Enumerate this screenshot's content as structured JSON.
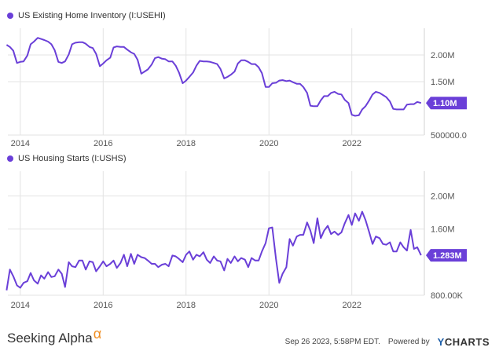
{
  "brand": {
    "name": "Seeking Alpha",
    "symbol": "α"
  },
  "footer": {
    "timestamp": "Sep 26 2023, 5:58PM EDT.",
    "powered_by": "Powered by",
    "provider_y": "Y",
    "provider_rest": "CHARTS"
  },
  "colors": {
    "line": "#6a3fd8",
    "grid": "#e3e3e3",
    "axis": "#555555",
    "brand_alpha": "#f08c1e",
    "ycharts_blue": "#1a5da8"
  },
  "chart_data": [
    {
      "type": "line",
      "title": "US Existing Home Inventory (I:USEHI)",
      "xlabel": "",
      "ylabel": "",
      "x_ticks": [
        "2014",
        "2016",
        "2018",
        "2020",
        "2022"
      ],
      "y_ticks": [
        {
          "value": 2000000,
          "label": "2.00M"
        },
        {
          "value": 1500000,
          "label": "1.50M"
        },
        {
          "value": 500000,
          "label": "500000.0"
        }
      ],
      "ylim": [
        500000,
        2500000
      ],
      "xlim": [
        2013.7,
        2023.75
      ],
      "last_value_label": "1.10M",
      "grid": true,
      "series": [
        {
          "x": [
            2013.67,
            2013.75,
            2013.83,
            2013.92,
            2014.0,
            2014.08,
            2014.17,
            2014.25,
            2014.33,
            2014.42,
            2014.5,
            2014.58,
            2014.67,
            2014.75,
            2014.83,
            2014.92,
            2015.0,
            2015.08,
            2015.17,
            2015.25,
            2015.33,
            2015.42,
            2015.5,
            2015.58,
            2015.67,
            2015.75,
            2015.83,
            2015.92,
            2016.0,
            2016.08,
            2016.17,
            2016.25,
            2016.33,
            2016.42,
            2016.5,
            2016.58,
            2016.67,
            2016.75,
            2016.83,
            2016.92,
            2017.0,
            2017.08,
            2017.17,
            2017.25,
            2017.33,
            2017.42,
            2017.5,
            2017.58,
            2017.67,
            2017.75,
            2017.83,
            2017.92,
            2018.0,
            2018.08,
            2018.17,
            2018.25,
            2018.33,
            2018.42,
            2018.5,
            2018.58,
            2018.67,
            2018.75,
            2018.83,
            2018.92,
            2019.0,
            2019.08,
            2019.17,
            2019.25,
            2019.33,
            2019.42,
            2019.5,
            2019.58,
            2019.67,
            2019.75,
            2019.83,
            2019.92,
            2020.0,
            2020.08,
            2020.17,
            2020.25,
            2020.33,
            2020.42,
            2020.5,
            2020.58,
            2020.67,
            2020.75,
            2020.83,
            2020.92,
            2021.0,
            2021.08,
            2021.17,
            2021.25,
            2021.33,
            2021.42,
            2021.5,
            2021.58,
            2021.67,
            2021.75,
            2021.83,
            2021.92,
            2022.0,
            2022.08,
            2022.17,
            2022.25,
            2022.33,
            2022.42,
            2022.5,
            2022.58,
            2022.67,
            2022.75,
            2022.83,
            2022.92,
            2023.0,
            2023.08,
            2023.17,
            2023.25,
            2023.33,
            2023.42,
            2023.5,
            2023.58,
            2023.67
          ],
          "values": [
            2190000,
            2150000,
            2080000,
            1850000,
            1870000,
            1880000,
            1990000,
            2200000,
            2250000,
            2320000,
            2300000,
            2280000,
            2250000,
            2200000,
            2090000,
            1870000,
            1850000,
            1880000,
            2010000,
            2200000,
            2230000,
            2240000,
            2240000,
            2210000,
            2150000,
            2130000,
            2020000,
            1790000,
            1840000,
            1900000,
            1950000,
            2140000,
            2160000,
            2150000,
            2150000,
            2100000,
            2050000,
            2020000,
            1910000,
            1650000,
            1690000,
            1730000,
            1820000,
            1940000,
            1960000,
            1930000,
            1920000,
            1880000,
            1880000,
            1800000,
            1670000,
            1470000,
            1520000,
            1590000,
            1670000,
            1800000,
            1890000,
            1880000,
            1880000,
            1870000,
            1850000,
            1830000,
            1740000,
            1560000,
            1590000,
            1630000,
            1690000,
            1840000,
            1900000,
            1900000,
            1870000,
            1830000,
            1830000,
            1770000,
            1660000,
            1400000,
            1400000,
            1470000,
            1480000,
            1520000,
            1530000,
            1510000,
            1520000,
            1490000,
            1460000,
            1460000,
            1400000,
            1290000,
            1050000,
            1040000,
            1040000,
            1150000,
            1230000,
            1230000,
            1290000,
            1310000,
            1270000,
            1260000,
            1160000,
            1100000,
            880000,
            860000,
            870000,
            980000,
            1040000,
            1150000,
            1260000,
            1310000,
            1290000,
            1250000,
            1210000,
            1130000,
            990000,
            980000,
            980000,
            980000,
            1070000,
            1080000,
            1080000,
            1120000,
            1100000
          ]
        }
      ]
    },
    {
      "type": "line",
      "title": "US Housing Starts (I:USHS)",
      "xlabel": "",
      "ylabel": "",
      "x_ticks": [
        "2014",
        "2016",
        "2018",
        "2020",
        "2022"
      ],
      "y_ticks": [
        {
          "value": 2000000,
          "label": "2.00M"
        },
        {
          "value": 1600000,
          "label": "1.60M"
        },
        {
          "value": 800000,
          "label": "800.00K"
        }
      ],
      "ylim": [
        800000,
        2300000
      ],
      "xlim": [
        2013.7,
        2023.75
      ],
      "last_value_label": "1.283M",
      "grid": true,
      "series": [
        {
          "x": [
            2013.67,
            2013.75,
            2013.83,
            2013.92,
            2014.0,
            2014.08,
            2014.17,
            2014.25,
            2014.33,
            2014.42,
            2014.5,
            2014.58,
            2014.67,
            2014.75,
            2014.83,
            2014.92,
            2015.0,
            2015.08,
            2015.17,
            2015.25,
            2015.33,
            2015.42,
            2015.5,
            2015.58,
            2015.67,
            2015.75,
            2015.83,
            2015.92,
            2016.0,
            2016.08,
            2016.17,
            2016.25,
            2016.33,
            2016.42,
            2016.5,
            2016.58,
            2016.67,
            2016.75,
            2016.83,
            2016.92,
            2017.0,
            2017.08,
            2017.17,
            2017.25,
            2017.33,
            2017.42,
            2017.5,
            2017.58,
            2017.67,
            2017.75,
            2017.83,
            2017.92,
            2018.0,
            2018.08,
            2018.17,
            2018.25,
            2018.33,
            2018.42,
            2018.5,
            2018.58,
            2018.67,
            2018.75,
            2018.83,
            2018.92,
            2019.0,
            2019.08,
            2019.17,
            2019.25,
            2019.33,
            2019.42,
            2019.5,
            2019.58,
            2019.67,
            2019.75,
            2019.83,
            2019.92,
            2020.0,
            2020.08,
            2020.17,
            2020.25,
            2020.33,
            2020.42,
            2020.5,
            2020.58,
            2020.67,
            2020.75,
            2020.83,
            2020.92,
            2021.0,
            2021.08,
            2021.17,
            2021.25,
            2021.33,
            2021.42,
            2021.5,
            2021.58,
            2021.67,
            2021.75,
            2021.83,
            2021.92,
            2022.0,
            2022.08,
            2022.17,
            2022.25,
            2022.33,
            2022.42,
            2022.5,
            2022.58,
            2022.67,
            2022.75,
            2022.83,
            2022.92,
            2023.0,
            2023.08,
            2023.17,
            2023.25,
            2023.33,
            2023.42,
            2023.5,
            2023.58,
            2023.67
          ],
          "values": [
            860000,
            1110000,
            1030000,
            920000,
            890000,
            950000,
            970000,
            1070000,
            980000,
            940000,
            1040000,
            1000000,
            1080000,
            1020000,
            1030000,
            1110000,
            1060000,
            900000,
            1200000,
            1150000,
            1140000,
            1220000,
            1220000,
            1110000,
            1210000,
            1200000,
            1090000,
            1150000,
            1210000,
            1150000,
            1180000,
            1220000,
            1130000,
            1190000,
            1290000,
            1150000,
            1300000,
            1180000,
            1290000,
            1260000,
            1250000,
            1220000,
            1180000,
            1180000,
            1140000,
            1170000,
            1180000,
            1150000,
            1280000,
            1270000,
            1240000,
            1200000,
            1290000,
            1330000,
            1230000,
            1290000,
            1270000,
            1320000,
            1230000,
            1190000,
            1270000,
            1220000,
            1210000,
            1100000,
            1240000,
            1190000,
            1270000,
            1210000,
            1250000,
            1230000,
            1140000,
            1250000,
            1220000,
            1220000,
            1330000,
            1430000,
            1610000,
            1620000,
            1240000,
            950000,
            1060000,
            1140000,
            1480000,
            1400000,
            1510000,
            1530000,
            1530000,
            1680000,
            1580000,
            1430000,
            1730000,
            1490000,
            1580000,
            1640000,
            1540000,
            1570000,
            1530000,
            1560000,
            1670000,
            1770000,
            1650000,
            1790000,
            1700000,
            1810000,
            1710000,
            1560000,
            1420000,
            1510000,
            1490000,
            1420000,
            1410000,
            1440000,
            1330000,
            1330000,
            1440000,
            1380000,
            1340000,
            1590000,
            1360000,
            1380000,
            1283000
          ]
        }
      ]
    }
  ]
}
